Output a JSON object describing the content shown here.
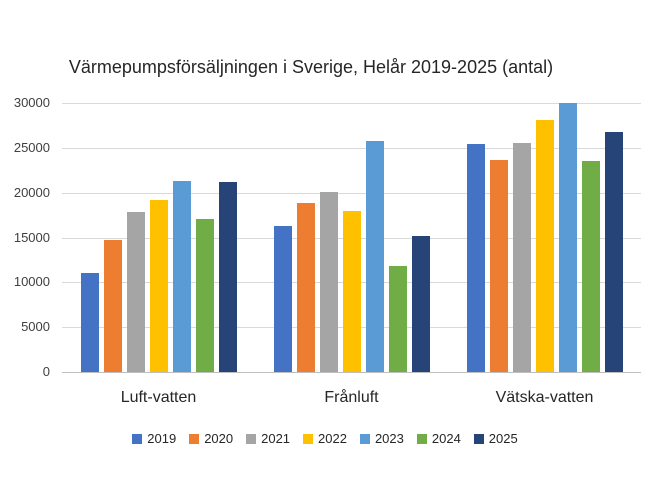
{
  "chart_data": {
    "type": "bar",
    "title": "Värmepumpsförsäljningen i Sverige, Helår 2019-2025 (antal)",
    "categories": [
      "Luft-vatten",
      "Frånluft",
      "Vätska-vatten"
    ],
    "series": [
      {
        "name": "2019",
        "color": "#4472C4",
        "values": [
          11000,
          16300,
          25400
        ]
      },
      {
        "name": "2020",
        "color": "#ED7D31",
        "values": [
          14700,
          18900,
          23700
        ]
      },
      {
        "name": "2021",
        "color": "#A5A5A5",
        "values": [
          17800,
          20100,
          25500
        ]
      },
      {
        "name": "2022",
        "color": "#FFC000",
        "values": [
          19200,
          18000,
          28100
        ]
      },
      {
        "name": "2023",
        "color": "#5B9BD5",
        "values": [
          21300,
          25800,
          30000
        ]
      },
      {
        "name": "2024",
        "color": "#70AD47",
        "values": [
          17100,
          11800,
          23500
        ]
      },
      {
        "name": "2025",
        "color": "#264478",
        "values": [
          21200,
          15200,
          26800
        ]
      }
    ],
    "ylim": [
      0,
      30000
    ],
    "yticks": [
      0,
      5000,
      10000,
      15000,
      20000,
      25000,
      30000
    ],
    "ytick_labels": [
      "0",
      "5000",
      "10000",
      "15000",
      "20000",
      "25000",
      "30000"
    ],
    "grid": true,
    "legend_position": "bottom",
    "legend_labels": [
      "2019",
      "2020",
      "2021",
      "2022",
      "2023",
      "2024",
      "2025"
    ],
    "xlabel": "",
    "ylabel": ""
  },
  "colors": {
    "background": "#FFFFFF",
    "gridline": "#D9D9D9",
    "axis_line": "#BFBFBF",
    "title_text": "#262626",
    "tick_text": "#404040"
  }
}
